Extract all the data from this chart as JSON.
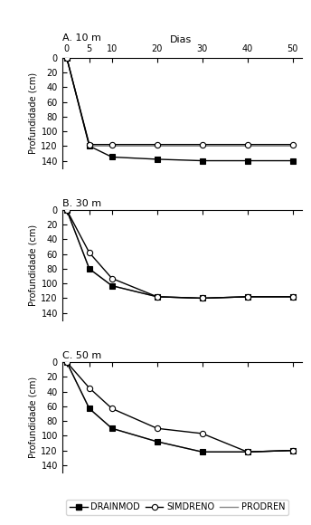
{
  "title_A": "A. 10 m",
  "title_B": "B. 30 m",
  "title_C": "C. 50 m",
  "xlabel": "Dias",
  "ylabel": "Profundidade (cm)",
  "x_ticks": [
    0,
    5,
    10,
    20,
    30,
    40,
    50
  ],
  "xlim": [
    -1,
    52
  ],
  "ylim": [
    150,
    0
  ],
  "y_ticks": [
    0,
    20,
    40,
    60,
    80,
    100,
    120,
    140
  ],
  "panel_A": {
    "drainmod": {
      "x": [
        0,
        5,
        10,
        20,
        30,
        40,
        50
      ],
      "y": [
        0,
        120,
        135,
        138,
        140,
        140,
        140
      ]
    },
    "simdreno": {
      "x": [
        0,
        5,
        10,
        20,
        30,
        40,
        50
      ],
      "y": [
        0,
        118,
        118,
        118,
        118,
        118,
        118
      ]
    },
    "prodren": {
      "x": [
        0,
        5,
        10,
        20,
        30,
        40,
        50
      ],
      "y": [
        0,
        120,
        120,
        120,
        120,
        120,
        120
      ]
    }
  },
  "panel_B": {
    "drainmod": {
      "x": [
        0,
        5,
        10,
        20,
        30,
        40,
        50
      ],
      "y": [
        0,
        80,
        103,
        118,
        120,
        118,
        118
      ]
    },
    "simdreno": {
      "x": [
        0,
        5,
        10,
        20,
        30,
        40,
        50
      ],
      "y": [
        0,
        58,
        93,
        118,
        120,
        118,
        118
      ]
    },
    "prodren": {
      "x": [
        0,
        5,
        10,
        20,
        30,
        40,
        50
      ],
      "y": [
        0,
        80,
        103,
        118,
        120,
        118,
        118
      ]
    }
  },
  "panel_C": {
    "drainmod": {
      "x": [
        0,
        5,
        10,
        20,
        30,
        40,
        50
      ],
      "y": [
        0,
        63,
        90,
        108,
        122,
        122,
        120
      ]
    },
    "simdreno": {
      "x": [
        0,
        5,
        10,
        20,
        30,
        40,
        50
      ],
      "y": [
        0,
        35,
        63,
        90,
        97,
        122,
        120
      ]
    },
    "prodren": {
      "x": [
        0,
        5,
        10,
        20,
        30,
        40,
        50
      ],
      "y": [
        0,
        63,
        90,
        108,
        122,
        122,
        120
      ]
    }
  },
  "color_drainmod": "#000000",
  "color_simdreno": "#000000",
  "color_prodren": "#888888",
  "legend_labels": [
    "DRAINMOD",
    "SIMDRENO",
    "PRODREN"
  ]
}
